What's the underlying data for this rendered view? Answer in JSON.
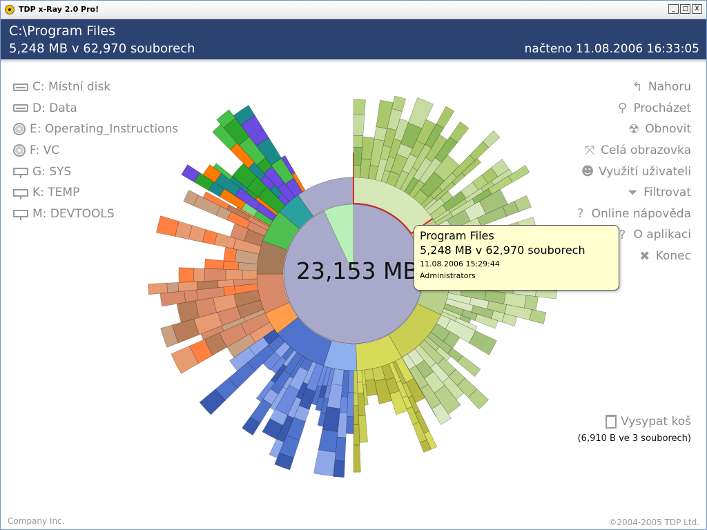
{
  "window": {
    "title": "TDP x-Ray 2.0 Pro!",
    "buttons": [
      "_",
      "□",
      "X"
    ]
  },
  "header": {
    "path": "C:\\Program Files",
    "summary": "5,248 MB v 62,970 souborech",
    "loaded": "načteno 11.08.2006 16:33:05"
  },
  "drives": [
    {
      "letter": "C:",
      "name": "Místní disk",
      "icon": "hard-drive-icon"
    },
    {
      "letter": "D:",
      "name": "Data",
      "icon": "hard-drive-icon"
    },
    {
      "letter": "E:",
      "name": "Operating_Instructions",
      "icon": "cd-icon"
    },
    {
      "letter": "F:",
      "name": "VC",
      "icon": "cd-icon"
    },
    {
      "letter": "G:",
      "name": "SYS",
      "icon": "network-drive-icon"
    },
    {
      "letter": "K:",
      "name": "TEMP",
      "icon": "network-drive-icon"
    },
    {
      "letter": "M:",
      "name": "DEVTOOLS",
      "icon": "network-drive-icon"
    }
  ],
  "actions": [
    {
      "label": "Nahoru",
      "glyph": "↰",
      "icon": "up-arrow-icon"
    },
    {
      "label": "Procházet",
      "glyph": "⚲",
      "icon": "search-icon"
    },
    {
      "label": "Obnovit",
      "glyph": "☢",
      "icon": "radiation-icon"
    },
    {
      "label": "Celá obrazovka",
      "glyph": "⤧",
      "icon": "fullscreen-icon"
    },
    {
      "label": "Využití uživateli",
      "glyph": "☻",
      "icon": "user-head-icon"
    },
    {
      "label": "Filtrovat",
      "glyph": "⏷",
      "icon": "filter-icon"
    },
    {
      "label": "Online nápověda",
      "glyph": "?",
      "icon": "help-icon"
    },
    {
      "label": "O aplikaci",
      "glyph": "?",
      "icon": "about-icon"
    },
    {
      "label": "Konec",
      "glyph": "✖",
      "icon": "exit-icon"
    }
  ],
  "trash": {
    "label": "Vysypat koš",
    "info": "(6,910 B ve 3 souborech)"
  },
  "chart": {
    "center_label": "23,153 MB",
    "selected": "Program Files"
  },
  "tooltip": {
    "name": "Program Files",
    "size": "5,248 MB v 62,970 souborech",
    "date": "11.08.2006 15:29:44",
    "owner": "Administrators"
  },
  "footer": {
    "left": "Company Inc.",
    "right": "©2004-2005 TDP Ltd."
  },
  "colors": {
    "header": "#2c4270",
    "tooltip_bg": "#ffffd0",
    "center_disk": "#a9a9cc",
    "selected_outline": "#e02020"
  }
}
